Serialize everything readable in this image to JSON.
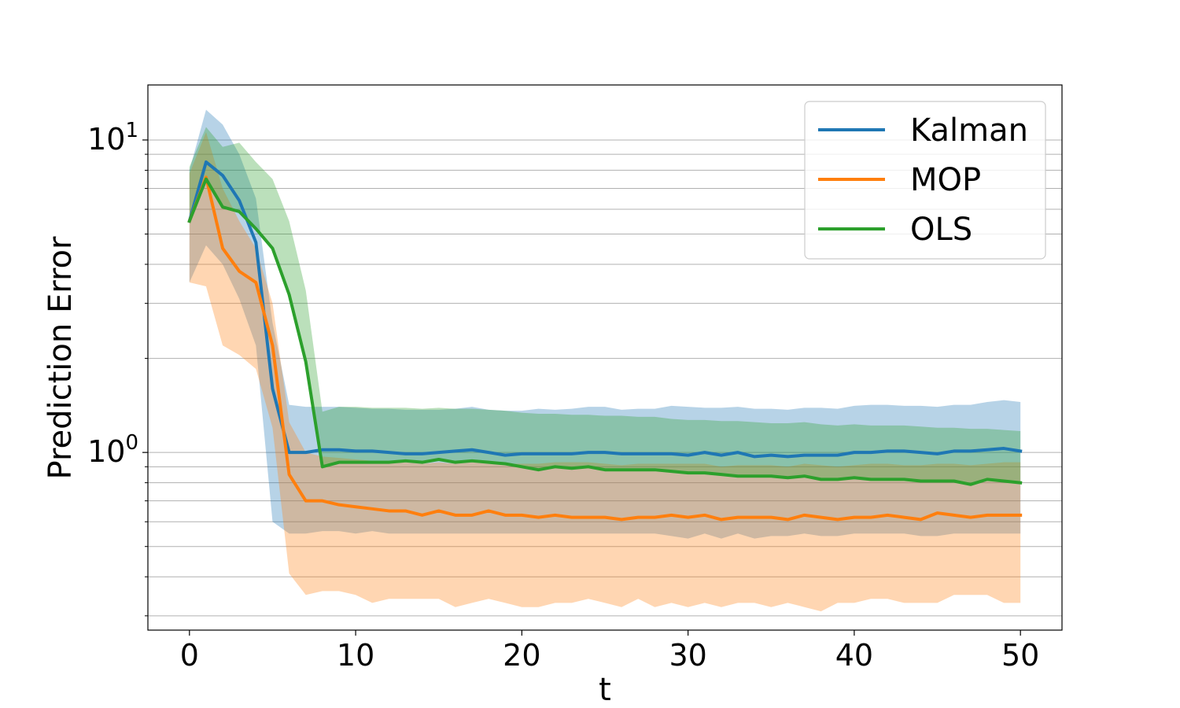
{
  "chart_data": {
    "type": "line",
    "xlabel": "t",
    "ylabel": "Prediction Error",
    "xlim": [
      -2.5,
      52.5
    ],
    "ylim": [
      0.27,
      15.0
    ],
    "yscale": "log",
    "grid": "horizontal-minor",
    "legend_position": "top-right",
    "x_ticks": [
      {
        "value": 0,
        "label": "0"
      },
      {
        "value": 10,
        "label": "10"
      },
      {
        "value": 20,
        "label": "20"
      },
      {
        "value": 30,
        "label": "30"
      },
      {
        "value": 40,
        "label": "40"
      },
      {
        "value": 50,
        "label": "50"
      }
    ],
    "y_major_ticks": [
      {
        "value": 1,
        "base": "10",
        "exp": "0"
      },
      {
        "value": 10,
        "base": "10",
        "exp": "1"
      }
    ],
    "y_minor_ticks": [
      0.3,
      0.4,
      0.5,
      0.6,
      0.7,
      0.8,
      0.9,
      2,
      3,
      4,
      5,
      6,
      7,
      8,
      9
    ],
    "x": [
      0,
      1,
      2,
      3,
      4,
      5,
      6,
      7,
      8,
      9,
      10,
      11,
      12,
      13,
      14,
      15,
      16,
      17,
      18,
      19,
      20,
      21,
      22,
      23,
      24,
      25,
      26,
      27,
      28,
      29,
      30,
      31,
      32,
      33,
      34,
      35,
      36,
      37,
      38,
      39,
      40,
      41,
      42,
      43,
      44,
      45,
      46,
      47,
      48,
      49,
      50
    ],
    "series": [
      {
        "name": "Kalman",
        "color": "#1f77b4",
        "values": [
          5.5,
          8.5,
          7.7,
          6.4,
          4.7,
          1.6,
          1.0,
          1.0,
          1.02,
          1.02,
          1.01,
          1.01,
          1.0,
          0.99,
          0.99,
          1.0,
          1.01,
          1.02,
          1.0,
          0.98,
          0.99,
          0.99,
          0.99,
          0.99,
          1.0,
          1.0,
          0.99,
          0.99,
          0.99,
          0.99,
          0.98,
          1.0,
          0.98,
          1.0,
          0.97,
          0.98,
          0.97,
          0.98,
          0.98,
          0.98,
          1.0,
          1.0,
          1.01,
          1.01,
          1.0,
          0.99,
          1.01,
          1.01,
          1.02,
          1.03,
          1.01
        ],
        "upper": [
          8.0,
          12.5,
          11.2,
          9.0,
          6.5,
          2.6,
          1.42,
          1.4,
          1.4,
          1.4,
          1.39,
          1.38,
          1.38,
          1.37,
          1.37,
          1.37,
          1.38,
          1.4,
          1.37,
          1.36,
          1.36,
          1.38,
          1.37,
          1.38,
          1.4,
          1.4,
          1.37,
          1.38,
          1.38,
          1.41,
          1.4,
          1.39,
          1.39,
          1.4,
          1.38,
          1.38,
          1.37,
          1.39,
          1.39,
          1.38,
          1.41,
          1.42,
          1.42,
          1.41,
          1.41,
          1.4,
          1.42,
          1.42,
          1.45,
          1.47,
          1.45
        ],
        "lower": [
          3.5,
          4.6,
          4.0,
          3.1,
          2.2,
          0.6,
          0.55,
          0.55,
          0.56,
          0.56,
          0.55,
          0.56,
          0.55,
          0.55,
          0.55,
          0.55,
          0.55,
          0.55,
          0.55,
          0.55,
          0.55,
          0.55,
          0.55,
          0.55,
          0.55,
          0.55,
          0.55,
          0.55,
          0.55,
          0.54,
          0.53,
          0.55,
          0.53,
          0.55,
          0.53,
          0.54,
          0.54,
          0.55,
          0.54,
          0.54,
          0.55,
          0.55,
          0.55,
          0.55,
          0.54,
          0.54,
          0.55,
          0.55,
          0.55,
          0.55,
          0.55
        ]
      },
      {
        "name": "MOP",
        "color": "#ff7f0e",
        "values": [
          5.5,
          7.6,
          4.5,
          3.8,
          3.5,
          2.2,
          0.85,
          0.7,
          0.7,
          0.68,
          0.67,
          0.66,
          0.65,
          0.65,
          0.63,
          0.65,
          0.63,
          0.63,
          0.65,
          0.63,
          0.63,
          0.62,
          0.63,
          0.62,
          0.62,
          0.62,
          0.61,
          0.62,
          0.62,
          0.63,
          0.62,
          0.63,
          0.61,
          0.62,
          0.62,
          0.62,
          0.61,
          0.63,
          0.62,
          0.61,
          0.62,
          0.62,
          0.63,
          0.62,
          0.61,
          0.64,
          0.63,
          0.62,
          0.63,
          0.63,
          0.63
        ],
        "upper": [
          7.8,
          10.6,
          7.0,
          5.5,
          4.5,
          3.0,
          1.25,
          1.0,
          0.97,
          0.96,
          0.95,
          0.94,
          0.94,
          0.93,
          0.92,
          0.93,
          0.92,
          0.93,
          0.93,
          0.92,
          0.92,
          0.92,
          0.93,
          0.93,
          0.93,
          0.92,
          0.91,
          0.92,
          0.92,
          0.92,
          0.92,
          0.92,
          0.9,
          0.91,
          0.91,
          0.91,
          0.9,
          0.92,
          0.91,
          0.9,
          0.91,
          0.92,
          0.92,
          0.91,
          0.91,
          0.92,
          0.92,
          0.91,
          0.92,
          0.93,
          0.93
        ],
        "lower": [
          3.5,
          3.4,
          2.2,
          2.05,
          1.85,
          1.2,
          0.41,
          0.35,
          0.36,
          0.36,
          0.35,
          0.33,
          0.34,
          0.34,
          0.34,
          0.34,
          0.32,
          0.33,
          0.34,
          0.33,
          0.32,
          0.32,
          0.33,
          0.33,
          0.34,
          0.33,
          0.32,
          0.34,
          0.32,
          0.33,
          0.32,
          0.33,
          0.32,
          0.33,
          0.33,
          0.32,
          0.33,
          0.32,
          0.31,
          0.33,
          0.33,
          0.34,
          0.34,
          0.33,
          0.33,
          0.33,
          0.35,
          0.35,
          0.35,
          0.33,
          0.33
        ]
      },
      {
        "name": "OLS",
        "color": "#2ca02c",
        "values": [
          5.5,
          7.5,
          6.1,
          5.9,
          5.2,
          4.5,
          3.2,
          1.95,
          0.9,
          0.93,
          0.93,
          0.93,
          0.93,
          0.94,
          0.93,
          0.95,
          0.93,
          0.94,
          0.93,
          0.92,
          0.9,
          0.88,
          0.9,
          0.89,
          0.9,
          0.88,
          0.88,
          0.88,
          0.88,
          0.87,
          0.86,
          0.86,
          0.85,
          0.84,
          0.84,
          0.84,
          0.83,
          0.84,
          0.82,
          0.82,
          0.83,
          0.82,
          0.82,
          0.82,
          0.81,
          0.81,
          0.81,
          0.79,
          0.82,
          0.81,
          0.8
        ],
        "upper": [
          8.2,
          11.0,
          9.5,
          9.8,
          8.5,
          7.5,
          5.5,
          3.3,
          1.35,
          1.4,
          1.4,
          1.39,
          1.39,
          1.39,
          1.38,
          1.39,
          1.38,
          1.38,
          1.37,
          1.36,
          1.34,
          1.33,
          1.33,
          1.32,
          1.32,
          1.31,
          1.31,
          1.3,
          1.3,
          1.28,
          1.27,
          1.27,
          1.26,
          1.26,
          1.25,
          1.24,
          1.24,
          1.25,
          1.23,
          1.22,
          1.23,
          1.22,
          1.22,
          1.22,
          1.21,
          1.2,
          1.2,
          1.19,
          1.19,
          1.18,
          1.17
        ]
      }
    ]
  }
}
